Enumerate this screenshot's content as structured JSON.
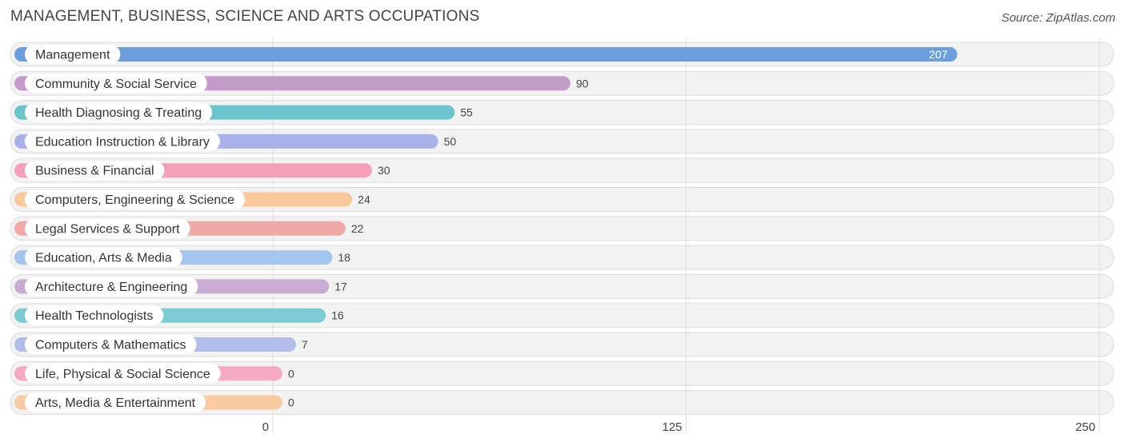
{
  "title": "MANAGEMENT, BUSINESS, SCIENCE AND ARTS OCCUPATIONS",
  "source": "Source: ZipAtlas.com",
  "chart_data": {
    "type": "bar",
    "orientation": "horizontal",
    "title": "MANAGEMENT, BUSINESS, SCIENCE AND ARTS OCCUPATIONS",
    "xlim": [
      0,
      250
    ],
    "xticks": [
      0,
      125,
      250
    ],
    "grid": true,
    "categories": [
      "Management",
      "Community & Social Service",
      "Health Diagnosing & Treating",
      "Education Instruction & Library",
      "Business & Financial",
      "Computers, Engineering & Science",
      "Legal Services & Support",
      "Education, Arts & Media",
      "Architecture & Engineering",
      "Health Technologists",
      "Computers & Mathematics",
      "Life, Physical & Social Science",
      "Arts, Media & Entertainment"
    ],
    "values": [
      207,
      90,
      55,
      50,
      30,
      24,
      22,
      18,
      17,
      16,
      7,
      0,
      0
    ],
    "colors": [
      "#6a9fdc",
      "#c39bc8",
      "#6cc4cc",
      "#a9b2e8",
      "#f59fb9",
      "#f9c99b",
      "#efaaa6",
      "#a4c5ec",
      "#c9acd3",
      "#7ccbd2",
      "#b3bde9",
      "#f6a9c2",
      "#f9cba3"
    ]
  }
}
